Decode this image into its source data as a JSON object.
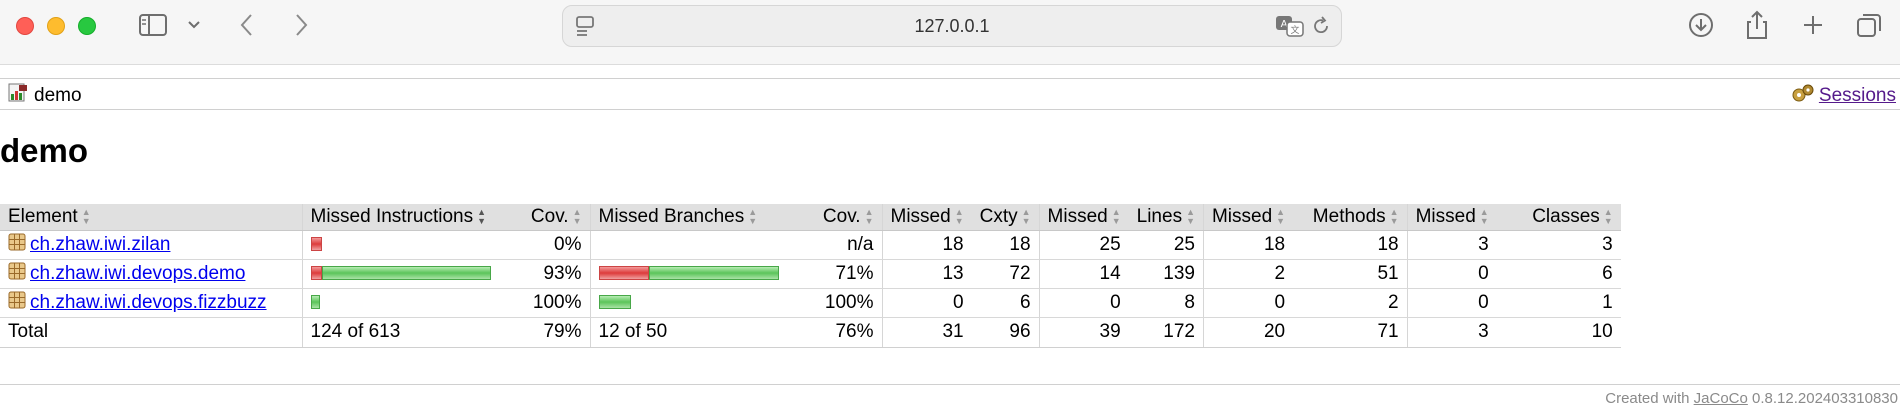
{
  "browser": {
    "url": "127.0.0.1"
  },
  "breadcrumb": {
    "report_name": "demo",
    "sessions_label": "Sessions"
  },
  "page": {
    "title": "demo"
  },
  "table": {
    "headers": {
      "element": "Element",
      "missed_instructions": "Missed Instructions",
      "cov1": "Cov.",
      "missed_branches": "Missed Branches",
      "cov2": "Cov.",
      "missed_cxty": "Missed",
      "cxty": "Cxty",
      "missed_lines": "Missed",
      "lines": "Lines",
      "missed_methods": "Missed",
      "methods": "Methods",
      "missed_classes": "Missed",
      "classes": "Classes"
    },
    "rows": [
      {
        "name": "ch.zhaw.iwi.zilan",
        "instr_missed_frac": 0.06,
        "instr_covered_frac": 0.0,
        "instr_cov": "0%",
        "branch_missed_frac": 0.0,
        "branch_covered_frac": 0.0,
        "branch_cov": "n/a",
        "missed_cxty": "18",
        "cxty": "18",
        "missed_lines": "25",
        "lines": "25",
        "missed_methods": "18",
        "methods": "18",
        "missed_classes": "3",
        "classes": "3"
      },
      {
        "name": "ch.zhaw.iwi.devops.demo",
        "instr_missed_frac": 0.06,
        "instr_covered_frac": 0.94,
        "instr_cov": "93%",
        "branch_missed_frac": 0.28,
        "branch_covered_frac": 0.72,
        "branch_cov": "71%",
        "missed_cxty": "13",
        "cxty": "72",
        "missed_lines": "14",
        "lines": "139",
        "missed_methods": "2",
        "methods": "51",
        "missed_classes": "0",
        "classes": "6"
      },
      {
        "name": "ch.zhaw.iwi.devops.fizzbuzz",
        "instr_missed_frac": 0.0,
        "instr_covered_frac": 0.05,
        "instr_cov": "100%",
        "branch_missed_frac": 0.0,
        "branch_covered_frac": 0.18,
        "branch_cov": "100%",
        "missed_cxty": "0",
        "cxty": "6",
        "missed_lines": "0",
        "lines": "8",
        "missed_methods": "0",
        "methods": "2",
        "missed_classes": "0",
        "classes": "1"
      }
    ],
    "total": {
      "label": "Total",
      "instr": "124 of 613",
      "instr_cov": "79%",
      "branch": "12 of 50",
      "branch_cov": "76%",
      "missed_cxty": "31",
      "cxty": "96",
      "missed_lines": "39",
      "lines": "172",
      "missed_methods": "20",
      "methods": "71",
      "missed_classes": "3",
      "classes": "10"
    }
  },
  "footer": {
    "prefix": "Created with",
    "tool": "JaCoCo",
    "version": "0.8.12.202403310830"
  },
  "colors": {
    "missed": "#dd3b3b",
    "covered": "#5bc45a",
    "link": "#0000ee",
    "header_bg": "#e0e0e0"
  }
}
